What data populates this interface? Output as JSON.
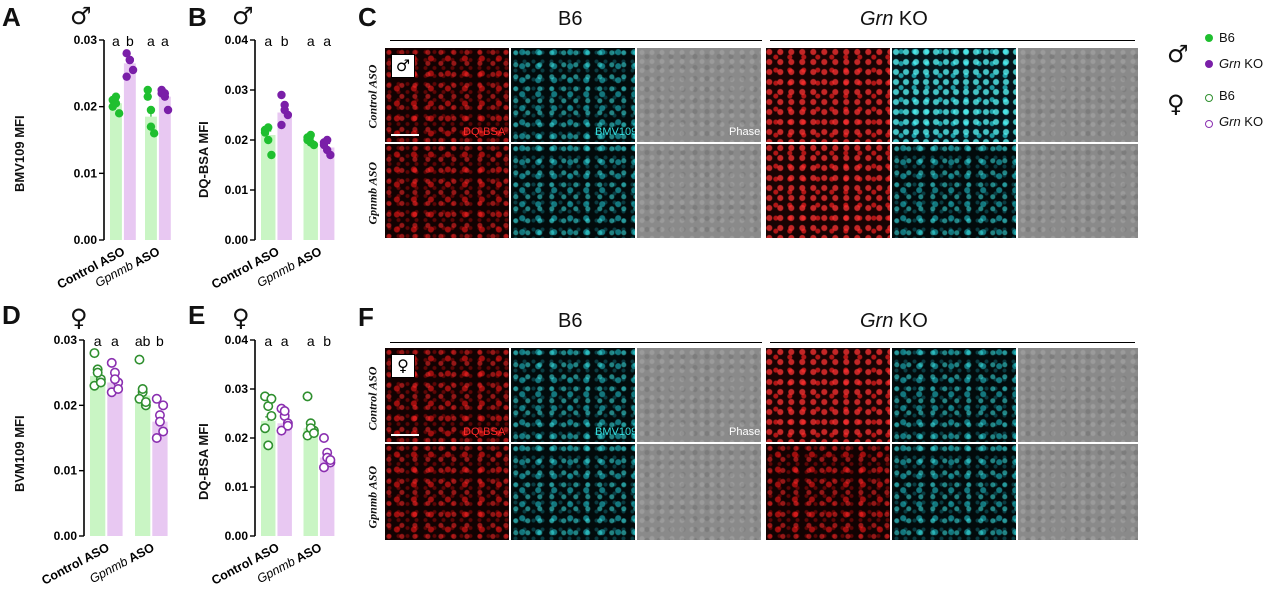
{
  "panels": {
    "A": {
      "letter": "A",
      "sex": "♂",
      "ylabel": "BMV109 MFI"
    },
    "B": {
      "letter": "B",
      "sex": "♂",
      "ylabel": "DQ-BSA MFI"
    },
    "C": {
      "letter": "C"
    },
    "D": {
      "letter": "D",
      "sex": "♀",
      "ylabel": "BVM109 MFI"
    },
    "E": {
      "letter": "E",
      "sex": "♀",
      "ylabel": "DQ-BSA MFI"
    },
    "F": {
      "letter": "F"
    }
  },
  "micrographs": {
    "header_b6": "B6",
    "header_grn_italic": "Grn",
    "header_grn_rest": " KO",
    "row_control": "Control ASO",
    "row_gpnmb_italic": "Gpnmb",
    "row_gpnmb_rest": " ASO",
    "label_dq": "DQ-BSA",
    "label_bmv": "BMV109",
    "label_phase": "Phase",
    "male_symbol": "♂",
    "female_symbol": "♀"
  },
  "legend": {
    "male_symbol": "♂",
    "female_symbol": "♀",
    "b6": "B6",
    "grn_italic": "Grn",
    "grn_rest": " KO"
  },
  "colors": {
    "b6_dark": "#1fbf2f",
    "b6_light": "#c9f5c4",
    "grn_dark": "#7a1fa8",
    "grn_light": "#e8c8f2",
    "b6_female_dark": "#2f8f2f",
    "grn_female_dark": "#8a2fb0"
  },
  "chart_data": [
    {
      "id": "A",
      "type": "bar",
      "categories": [
        "Control ASO",
        "Gpnmb ASO"
      ],
      "category_italic": [
        "",
        "Gpnmb"
      ],
      "ylim": [
        0,
        0.03
      ],
      "yticks": [
        "0.00",
        "0.01",
        "0.02",
        "0.03"
      ],
      "ylabel": "BMV109 MFI",
      "series": [
        {
          "name": "B6",
          "values": [
            0.0205,
            0.0185
          ],
          "points": [
            [
              0.02,
              0.0215,
              0.019,
              0.021,
              0.0205
            ],
            [
              0.0225,
              0.017,
              0.016,
              0.0215,
              0.0195
            ]
          ]
        },
        {
          "name": "Grn KO",
          "values": [
            0.0265,
            0.0215
          ],
          "points": [
            [
              0.028,
              0.027,
              0.0255,
              0.0245,
              0.027
            ],
            [
              0.0225,
              0.022,
              0.0195,
              0.022,
              0.0215
            ]
          ]
        }
      ],
      "sig_letters": [
        [
          "a",
          "b"
        ],
        [
          "a",
          "a"
        ]
      ],
      "open_markers": false
    },
    {
      "id": "B",
      "type": "bar",
      "categories": [
        "Control ASO",
        "Gpnmb ASO"
      ],
      "category_italic": [
        "",
        "Gpnmb"
      ],
      "ylim": [
        0,
        0.04
      ],
      "yticks": [
        "0.00",
        "0.01",
        "0.02",
        "0.03",
        "0.04"
      ],
      "ylabel": "DQ-BSA MFI",
      "series": [
        {
          "name": "B6",
          "values": [
            0.021,
            0.0195
          ],
          "points": [
            [
              0.022,
              0.02,
              0.017,
              0.0215,
              0.0225
            ],
            [
              0.0205,
              0.0195,
              0.019,
              0.02,
              0.021
            ]
          ]
        },
        {
          "name": "Grn KO",
          "values": [
            0.0255,
            0.0185
          ],
          "points": [
            [
              0.029,
              0.027,
              0.025,
              0.023,
              0.026
            ],
            [
              0.0195,
              0.018,
              0.017,
              0.019,
              0.02
            ]
          ]
        }
      ],
      "sig_letters": [
        [
          "a",
          "b"
        ],
        [
          "a",
          "a"
        ]
      ],
      "open_markers": false
    },
    {
      "id": "D",
      "type": "bar",
      "categories": [
        "Control ASO",
        "Gpnmb ASO"
      ],
      "category_italic": [
        "",
        "Gpnmb"
      ],
      "ylim": [
        0,
        0.03
      ],
      "yticks": [
        "0.00",
        "0.01",
        "0.02",
        "0.03"
      ],
      "ylabel": "BVM109 MFI",
      "series": [
        {
          "name": "B6",
          "values": [
            0.0245,
            0.0215
          ],
          "points": [
            [
              0.028,
              0.0255,
              0.024,
              0.023,
              0.025,
              0.0235
            ],
            [
              0.027,
              0.022,
              0.02,
              0.021,
              0.0225,
              0.0205
            ]
          ]
        },
        {
          "name": "Grn KO",
          "values": [
            0.0235,
            0.0175
          ],
          "points": [
            [
              0.0265,
              0.025,
              0.0235,
              0.022,
              0.024,
              0.0225
            ],
            [
              0.021,
              0.0185,
              0.016,
              0.015,
              0.0175,
              0.02
            ]
          ]
        }
      ],
      "sig_letters": [
        [
          "a",
          "a"
        ],
        [
          "ab",
          "b"
        ]
      ],
      "open_markers": true
    },
    {
      "id": "E",
      "type": "bar",
      "categories": [
        "Control ASO",
        "Gpnmb ASO"
      ],
      "category_italic": [
        "",
        "Gpnmb"
      ],
      "ylim": [
        0,
        0.04
      ],
      "yticks": [
        "0.00",
        "0.01",
        "0.02",
        "0.03",
        "0.04"
      ],
      "ylabel": "DQ-BSA MFI",
      "series": [
        {
          "name": "B6",
          "values": [
            0.0235,
            0.022
          ],
          "points": [
            [
              0.0285,
              0.0265,
              0.0245,
              0.022,
              0.0185,
              0.028
            ],
            [
              0.0285,
              0.023,
              0.0215,
              0.0205,
              0.022,
              0.021
            ]
          ]
        },
        {
          "name": "Grn KO",
          "values": [
            0.023,
            0.016
          ],
          "points": [
            [
              0.026,
              0.0245,
              0.023,
              0.0215,
              0.0255,
              0.0225
            ],
            [
              0.02,
              0.017,
              0.015,
              0.014,
              0.016,
              0.0155
            ]
          ]
        }
      ],
      "sig_letters": [
        [
          "a",
          "a"
        ],
        [
          "a",
          "b"
        ]
      ],
      "open_markers": true
    }
  ]
}
